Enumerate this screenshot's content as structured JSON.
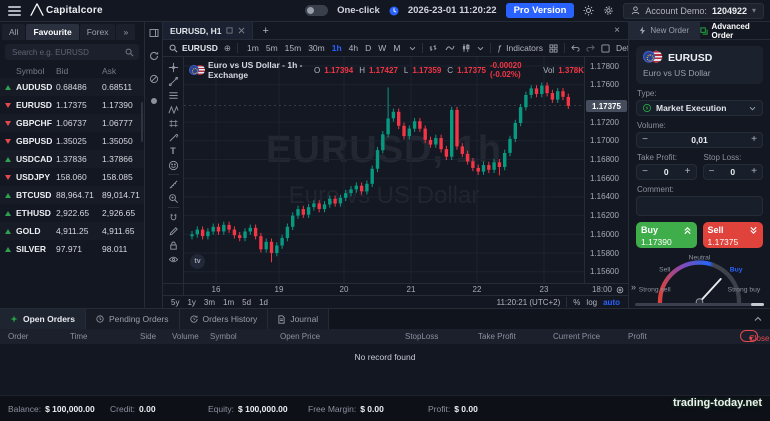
{
  "topbar": {
    "brand": "Capitalcore",
    "one_click_label": "One-click",
    "datetime": "2026-23-01 11:20:22",
    "pro_version_label": "Pro Version",
    "account_label": "Account Demo:",
    "account_number": "1204922"
  },
  "watchlist": {
    "tabs": [
      "All",
      "Favourite",
      "Forex"
    ],
    "active_tab": "Favourite",
    "more_tabs_icon": "»",
    "search_placeholder": "Search e.g. EURUSD",
    "columns": [
      "Symbol",
      "Bid",
      "Ask"
    ],
    "rows": [
      {
        "symbol": "AUDUSD",
        "bid": "0.68486",
        "ask": "0.68511",
        "dir": "up"
      },
      {
        "symbol": "EURUSD",
        "bid": "1.17375",
        "ask": "1.17390",
        "dir": "down"
      },
      {
        "symbol": "GBPCHF",
        "bid": "1.06737",
        "ask": "1.06777",
        "dir": "down"
      },
      {
        "symbol": "GBPUSD",
        "bid": "1.35025",
        "ask": "1.35050",
        "dir": "down"
      },
      {
        "symbol": "USDCAD",
        "bid": "1.37836",
        "ask": "1.37866",
        "dir": "up"
      },
      {
        "symbol": "USDJPY",
        "bid": "158.060",
        "ask": "158.085",
        "dir": "down"
      },
      {
        "symbol": "BTCUSD",
        "bid": "88,964.71",
        "ask": "89,014.71",
        "dir": "up"
      },
      {
        "symbol": "ETHUSD",
        "bid": "2,922.65",
        "ask": "2,926.65",
        "dir": "up"
      },
      {
        "symbol": "GOLD",
        "bid": "4,911.25",
        "ask": "4,911.65",
        "dir": "up"
      },
      {
        "symbol": "SILVER",
        "bid": "97.971",
        "ask": "98.011",
        "dir": "up"
      }
    ]
  },
  "chart": {
    "tab_title": "EURUSD, H1",
    "add_tab": "+",
    "symbol_search": "EURUSD",
    "timeframes": [
      "1m",
      "5m",
      "15m",
      "30m",
      "1h",
      "4h",
      "D",
      "W",
      "M"
    ],
    "active_timeframe": "1h",
    "fx_glyph": "ƒ",
    "indicators_label": "Indicators",
    "layout_name": "Default_EURU...",
    "legend": {
      "title": "Euro vs US Dollar - 1h - Exchange",
      "o_label": "O",
      "o": "1.17394",
      "h_label": "H",
      "h": "1.17427",
      "l_label": "L",
      "l": "1.17359",
      "c_label": "C",
      "c": "1.17375",
      "change": "-0.00020 (-0.02%)",
      "vol_label": "Vol",
      "vol": "1.378K"
    },
    "watermark_line1": "EURUSD, 1h",
    "watermark_line2": "Euro vs US Dollar",
    "tv_logo_text": "tv",
    "price_scale": [
      "1.17800",
      "1.17600",
      "1.17200",
      "1.17000",
      "1.16800",
      "1.16600",
      "1.16400",
      "1.16200",
      "1.16000",
      "1.15800",
      "1.15600"
    ],
    "current_price": "1.17375",
    "time_axis": {
      "labels": [
        "16",
        "19",
        "20",
        "21",
        "22",
        "23"
      ],
      "xs": [
        32,
        95,
        160,
        227,
        293,
        360
      ]
    },
    "corner_time": "18:00",
    "ranges": [
      "5y",
      "1y",
      "3m",
      "1m",
      "5d",
      "1d"
    ],
    "clock": "11:20:21 (UTC+2)",
    "percent_label": "%",
    "log_label": "log",
    "auto_label": "auto"
  },
  "chart_data": {
    "type": "candlestick",
    "symbol": "EURUSD",
    "interval": "1h",
    "title": "Euro vs US Dollar",
    "price_range": [
      1.156,
      1.178
    ],
    "first_open": 1.1598,
    "closes": [
      1.16,
      1.1605,
      1.1598,
      1.1603,
      1.1608,
      1.1603,
      1.161,
      1.1605,
      1.1599,
      1.1596,
      1.1603,
      1.1607,
      1.1598,
      1.1584,
      1.1592,
      1.158,
      1.1588,
      1.1596,
      1.1608,
      1.162,
      1.1627,
      1.1621,
      1.1629,
      1.1633,
      1.1627,
      1.1632,
      1.1638,
      1.1633,
      1.1639,
      1.1644,
      1.1648,
      1.1652,
      1.1646,
      1.1654,
      1.167,
      1.169,
      1.1707,
      1.1724,
      1.1731,
      1.1716,
      1.1705,
      1.1713,
      1.1721,
      1.1713,
      1.1701,
      1.1696,
      1.1703,
      1.1691,
      1.1683,
      1.1733,
      1.1694,
      1.1686,
      1.1678,
      1.1671,
      1.1667,
      1.1674,
      1.1669,
      1.1677,
      1.1672,
      1.1687,
      1.1702,
      1.1719,
      1.1736,
      1.1749,
      1.1756,
      1.175,
      1.1759,
      1.1751,
      1.1744,
      1.1753,
      1.1747,
      1.17375
    ],
    "wick_overrides": {
      "15": {
        "low": 1.157
      },
      "37": {
        "high": 1.1757
      },
      "58": {
        "low": 1.1663
      }
    },
    "up_color": "#089981",
    "down_color": "#f23645"
  },
  "order_panel": {
    "tabs": [
      "New Order",
      "Advanced Order"
    ],
    "active_tab": "Advanced Order",
    "symbol": "EURUSD",
    "symbol_name": "Euro vs US Dollar",
    "type_label": "Type:",
    "type_value": "Market Execution",
    "volume_label": "Volume:",
    "volume_value": "0,01",
    "minus_glyph": "−",
    "plus_glyph": "+",
    "tp_label": "Take Profit:",
    "tp_value": "0",
    "sl_label": "Stop Loss:",
    "sl_value": "0",
    "comment_label": "Comment:",
    "buy_label": "Buy",
    "buy_price": "1.17390",
    "sell_label": "Sell",
    "sell_price": "1.17375",
    "collapse_glyph": "»",
    "sentiment": {
      "labels": [
        "Strong sell",
        "Sell",
        "Neutral",
        "Buy",
        "Strong buy"
      ],
      "active": "Buy",
      "active_color": "#2962ff"
    }
  },
  "orders_panel": {
    "tabs": [
      "Open Orders",
      "Pending Orders",
      "Orders History",
      "Journal"
    ],
    "active_tab": "Open Orders",
    "columns": [
      "Order",
      "Time",
      "Side",
      "Volume",
      "Symbol",
      "Open Price",
      "StopLoss",
      "Take Profit",
      "Current Price",
      "Profit"
    ],
    "close_button": "Close",
    "close_caret": "▾",
    "empty_text": "No record found"
  },
  "status_bar": {
    "items": [
      {
        "label": "Balance:",
        "value": "$ 100,000.00"
      },
      {
        "label": "Credit:",
        "value": "0.00"
      },
      {
        "label": "Equity:",
        "value": "$ 100,000.00"
      },
      {
        "label": "Free Margin:",
        "value": "$ 0.00"
      },
      {
        "label": "Profit:",
        "value": "$ 0.00"
      }
    ]
  },
  "site_watermark": "trading-today.net",
  "colors": {
    "accent_blue": "#2962ff",
    "candle_up": "#089981",
    "candle_down": "#f23645",
    "buy_green": "#3fae4a",
    "sell_red": "#e0433c",
    "arrow_up": "#2ea04f",
    "arrow_down": "#e5484d"
  }
}
